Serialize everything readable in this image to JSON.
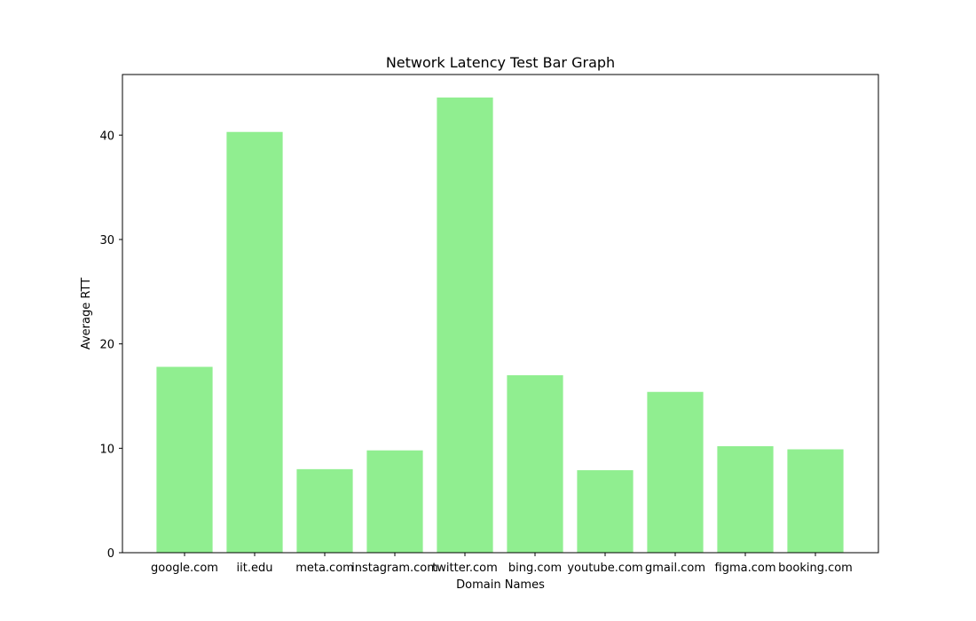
{
  "chart_data": {
    "type": "bar",
    "title": "Network Latency Test Bar Graph",
    "xlabel": "Domain Names",
    "ylabel": "Average RTT",
    "categories": [
      "google.com",
      "iit.edu",
      "meta.com",
      "instagram.com",
      "twitter.com",
      "bing.com",
      "youtube.com",
      "gmail.com",
      "figma.com",
      "booking.com"
    ],
    "values": [
      17.8,
      40.3,
      8.0,
      9.8,
      43.6,
      17.0,
      7.9,
      15.4,
      10.2,
      9.9
    ],
    "ylim": [
      0,
      45.8
    ],
    "yticks": [
      0,
      10,
      20,
      30,
      40
    ],
    "bar_color": "#90ee90",
    "grid": false
  }
}
